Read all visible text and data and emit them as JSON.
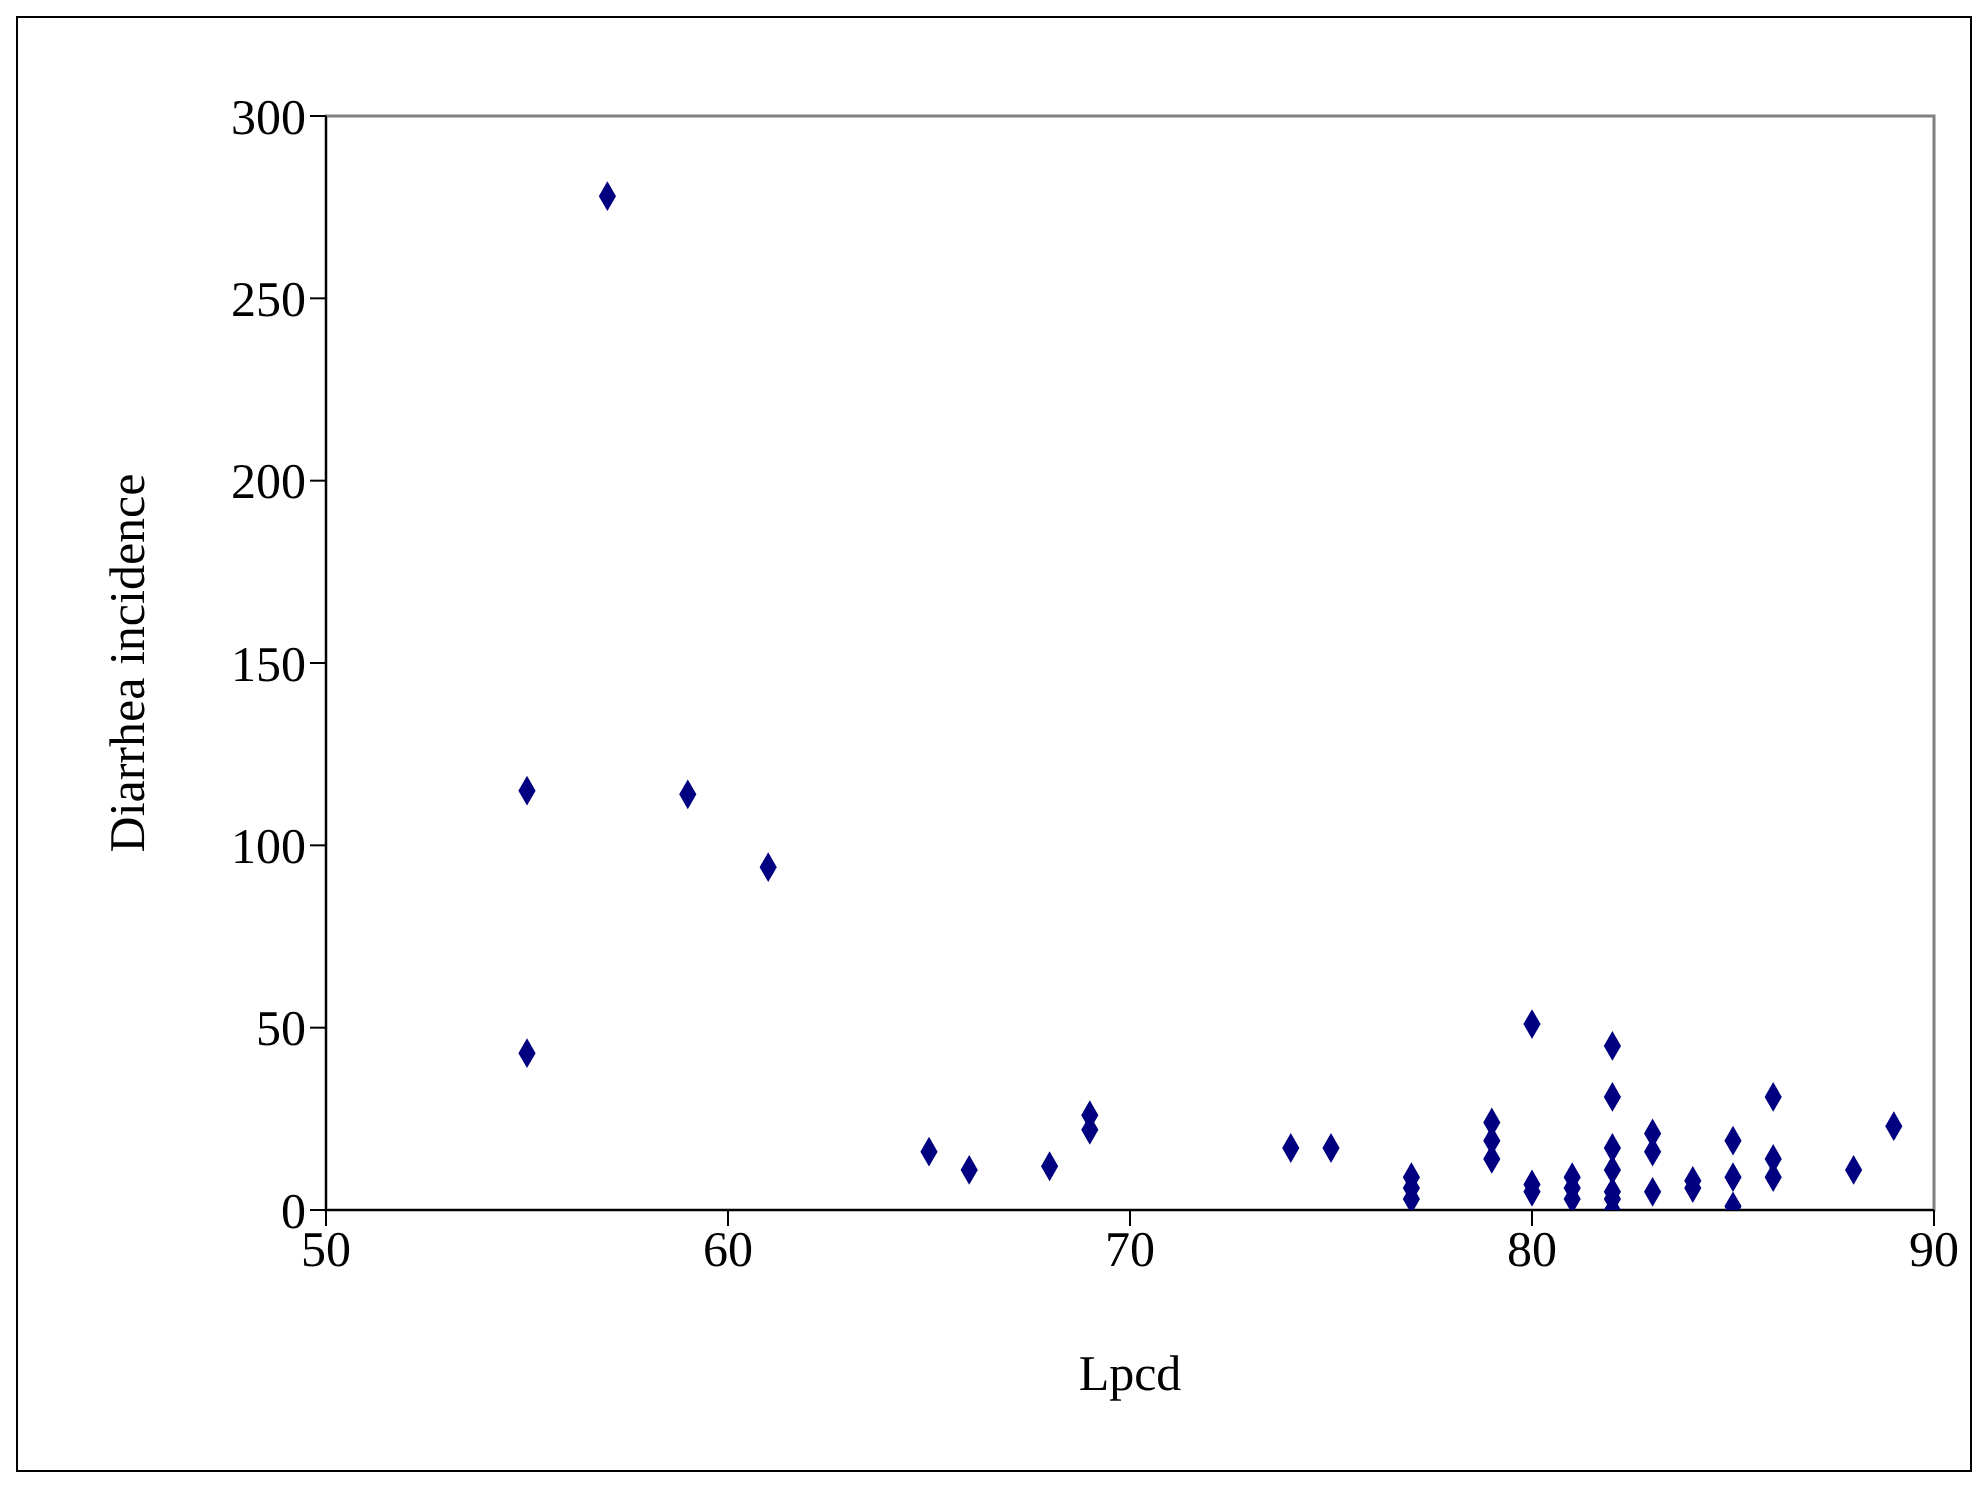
{
  "chart_data": {
    "type": "scatter",
    "xlabel": "Lpcd",
    "ylabel": "Diarrhea incidence",
    "xlim": [
      50,
      90
    ],
    "xticks": [
      50,
      60,
      70,
      80,
      90
    ],
    "ylim": [
      0,
      300
    ],
    "yticks": [
      0,
      50,
      100,
      150,
      200,
      250,
      300
    ],
    "grid": false,
    "legend": false,
    "marker": "diamond",
    "series": [
      {
        "color": "#000080",
        "x": [
          55,
          55,
          57,
          59,
          61,
          65,
          66,
          68,
          69,
          69,
          74,
          75,
          77,
          77,
          77,
          79,
          79,
          79,
          80,
          80,
          80,
          81,
          81,
          81,
          82,
          82,
          82,
          82,
          82,
          82,
          82,
          83,
          83,
          83,
          84,
          84,
          85,
          85,
          85,
          86,
          86,
          86,
          88,
          89
        ],
        "values": [
          115,
          43,
          278,
          114,
          94,
          16,
          11,
          12,
          26,
          22,
          17,
          17,
          9,
          6,
          3,
          24,
          19,
          14,
          51,
          7,
          5,
          9,
          6,
          3,
          45,
          31,
          17,
          11,
          5,
          3,
          0,
          21,
          16,
          5,
          8,
          6,
          19,
          9,
          1,
          31,
          14,
          9,
          11,
          23
        ]
      }
    ]
  }
}
